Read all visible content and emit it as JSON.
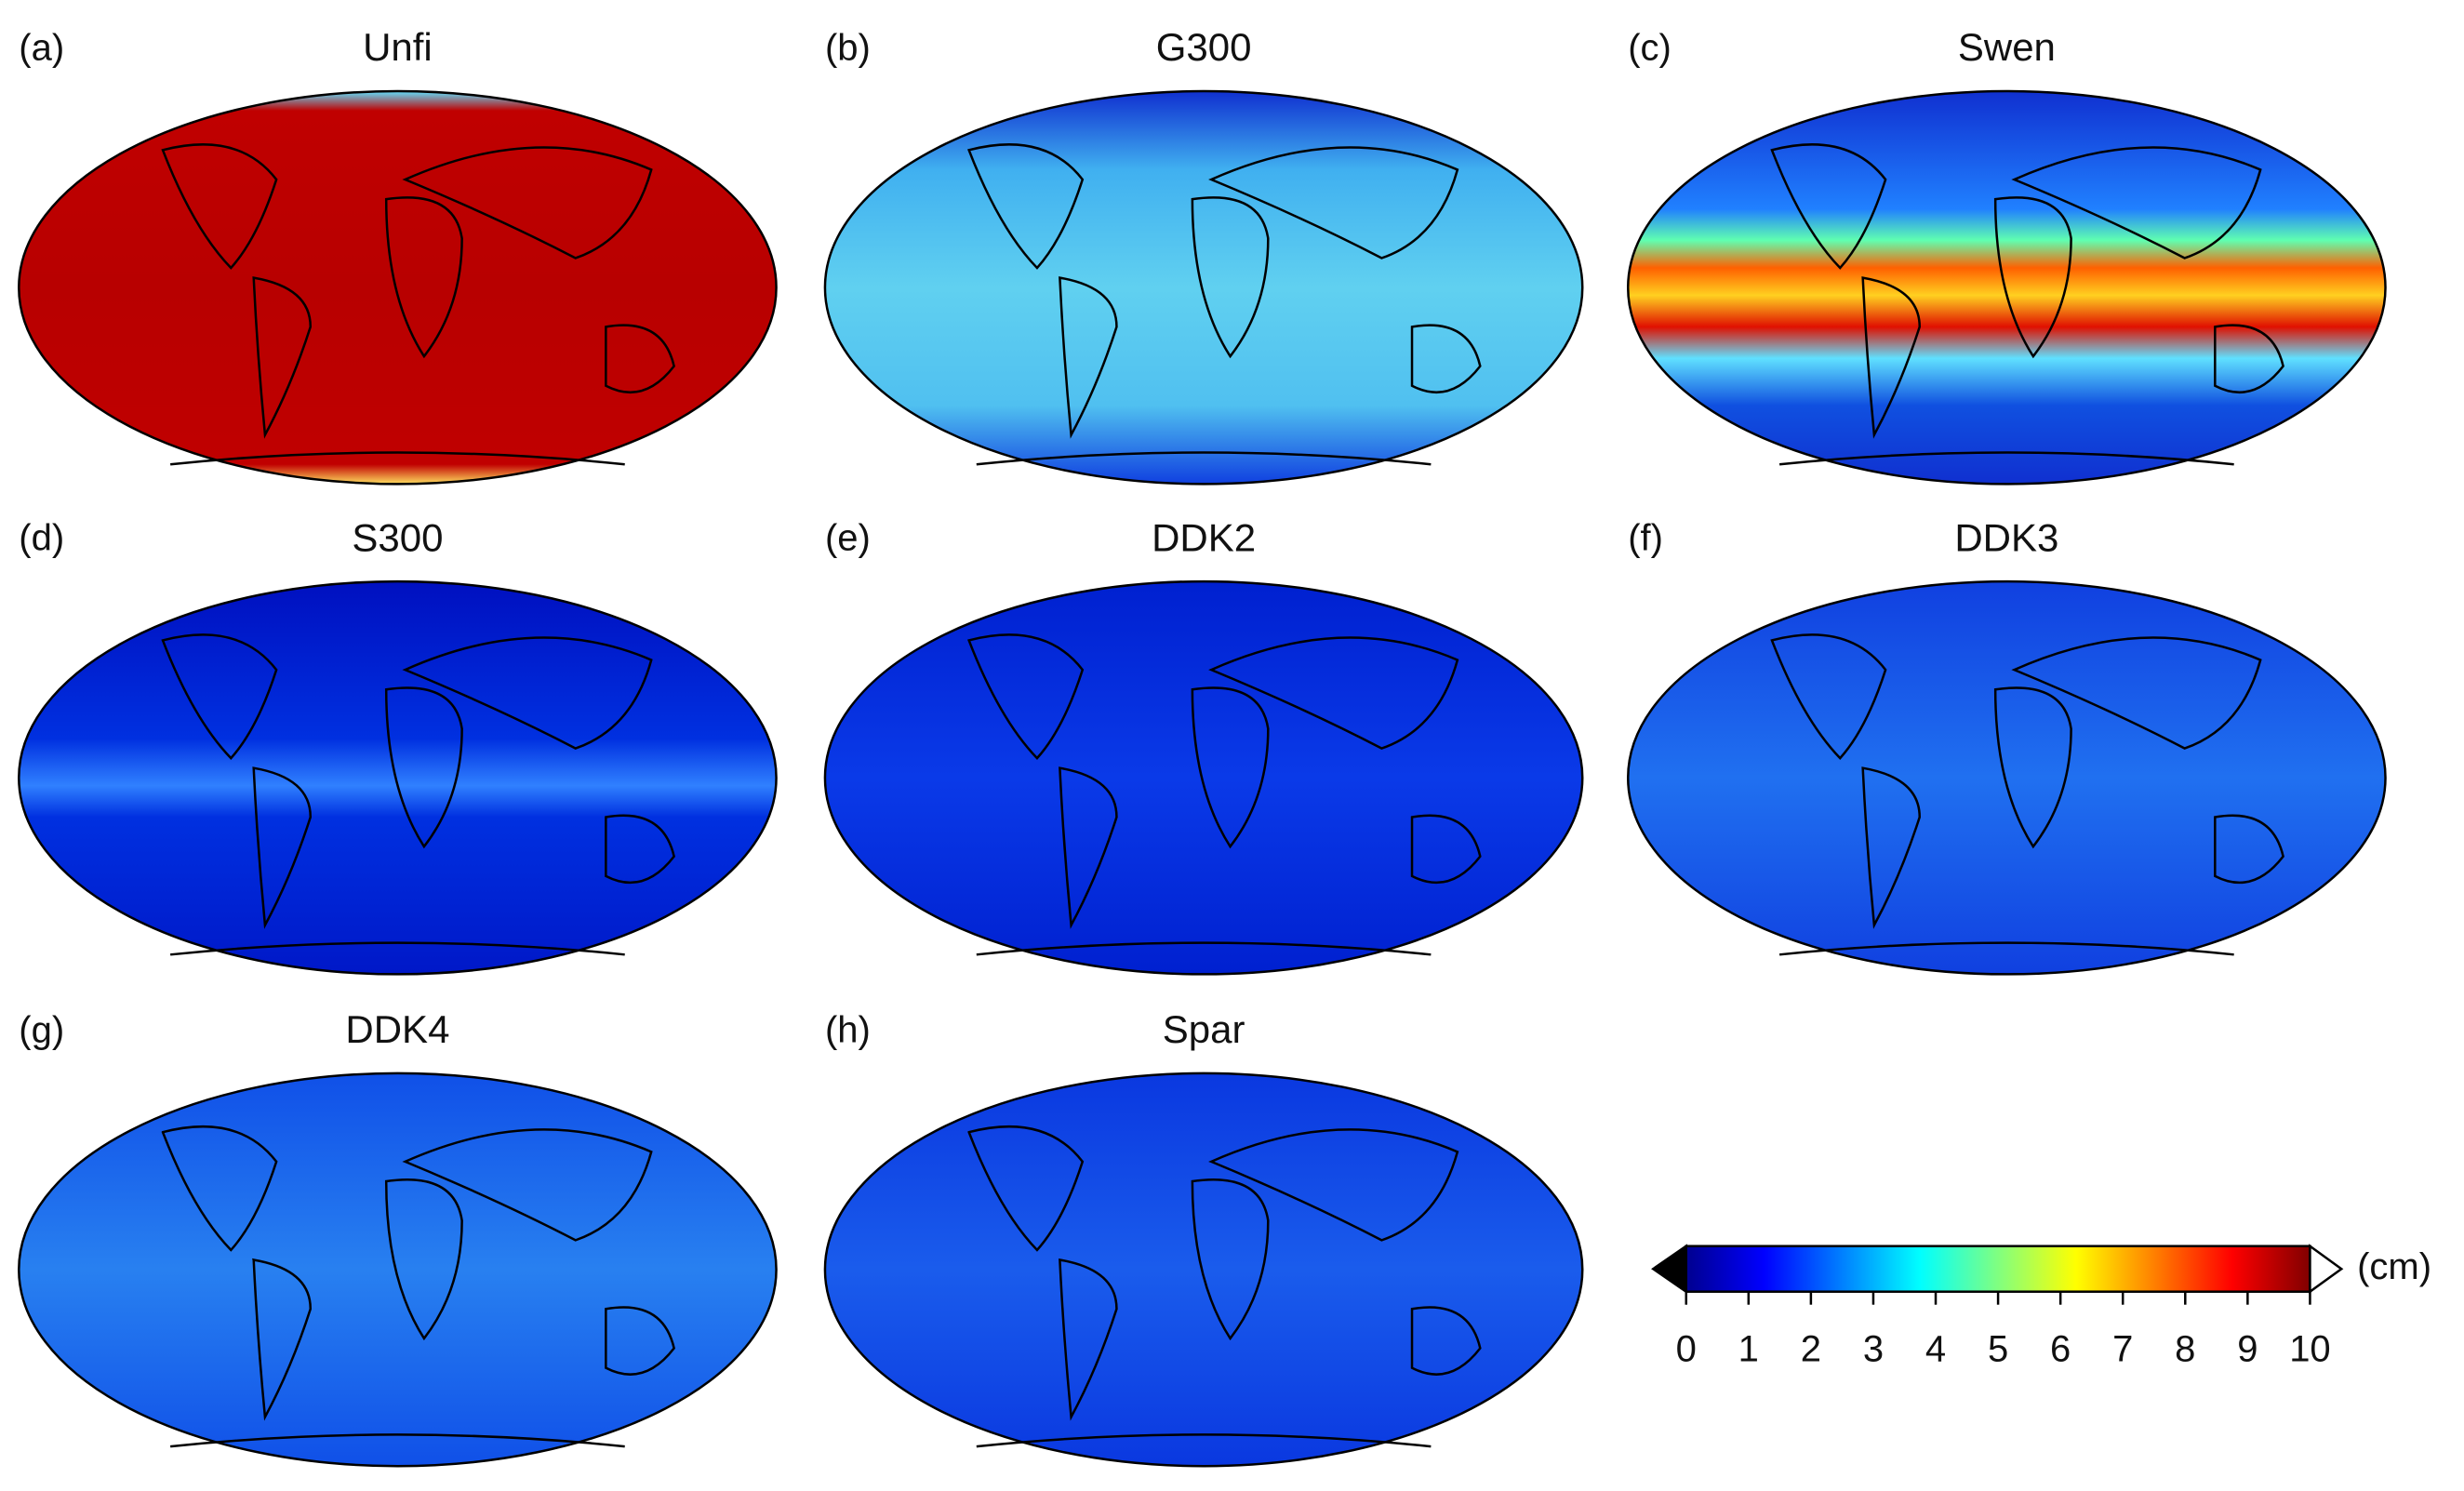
{
  "panels": [
    {
      "label": "(a)",
      "title": "Unfi"
    },
    {
      "label": "(b)",
      "title": "G300"
    },
    {
      "label": "(c)",
      "title": "Swen"
    },
    {
      "label": "(d)",
      "title": "S300"
    },
    {
      "label": "(e)",
      "title": "DDK2"
    },
    {
      "label": "(f)",
      "title": "DDK3"
    },
    {
      "label": "(g)",
      "title": "DDK4"
    },
    {
      "label": "(h)",
      "title": "Spar"
    }
  ],
  "colorbar": {
    "range": [
      0,
      10
    ],
    "ticks": [
      0,
      1,
      2,
      3,
      4,
      5,
      6,
      7,
      8,
      9,
      10
    ],
    "unit": "(cm)",
    "colors": [
      "#00008f",
      "#0000ff",
      "#0080ff",
      "#00ffff",
      "#80ff80",
      "#ffff00",
      "#ff8000",
      "#ff0000",
      "#800000"
    ]
  }
}
